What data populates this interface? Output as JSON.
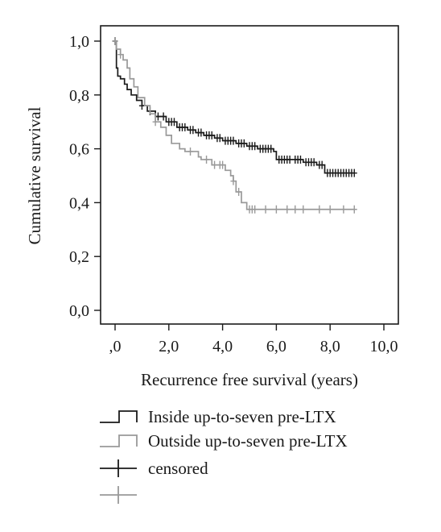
{
  "chart_data": {
    "type": "line",
    "subtype": "kaplan-meier step curve with censor marks",
    "title": "",
    "xlabel": "Recurrence free survival (years)",
    "ylabel": "Cumulative survival",
    "xlim": [
      0,
      10
    ],
    "ylim": [
      0,
      1
    ],
    "x_ticks": [
      0,
      2,
      4,
      6,
      8,
      10
    ],
    "x_tick_labels": [
      ",0",
      "2,0",
      "4,0",
      "6,0",
      "8,0",
      "10,0"
    ],
    "y_ticks": [
      0,
      0.2,
      0.4,
      0.6,
      0.8,
      1.0
    ],
    "y_tick_labels": [
      "0,0",
      "0,2",
      "0,4",
      "0,6",
      "0,8",
      "1,0"
    ],
    "grid": false,
    "legend_position": "bottom",
    "series": [
      {
        "name": "Inside up-to-seven pre-LTX",
        "color": "#1a1a1a",
        "steps": [
          [
            0,
            1.0
          ],
          [
            0.05,
            0.9
          ],
          [
            0.1,
            0.87
          ],
          [
            0.2,
            0.86
          ],
          [
            0.35,
            0.84
          ],
          [
            0.45,
            0.82
          ],
          [
            0.6,
            0.8
          ],
          [
            0.8,
            0.78
          ],
          [
            1.0,
            0.76
          ],
          [
            1.2,
            0.74
          ],
          [
            1.5,
            0.72
          ],
          [
            1.9,
            0.7
          ],
          [
            2.3,
            0.68
          ],
          [
            2.7,
            0.67
          ],
          [
            3.0,
            0.66
          ],
          [
            3.3,
            0.65
          ],
          [
            3.7,
            0.64
          ],
          [
            4.0,
            0.63
          ],
          [
            4.5,
            0.62
          ],
          [
            4.9,
            0.61
          ],
          [
            5.3,
            0.6
          ],
          [
            5.9,
            0.59
          ],
          [
            6.0,
            0.58
          ],
          [
            6.0,
            0.56
          ],
          [
            7.0,
            0.55
          ],
          [
            7.5,
            0.54
          ],
          [
            7.8,
            0.53
          ],
          [
            7.8,
            0.51
          ],
          [
            8.9,
            0.51
          ]
        ],
        "censored_x": [
          0.0,
          1.0,
          1.3,
          1.6,
          1.8,
          2.0,
          2.1,
          2.2,
          2.4,
          2.5,
          2.6,
          2.8,
          2.9,
          3.1,
          3.2,
          3.4,
          3.5,
          3.6,
          3.8,
          3.9,
          4.1,
          4.2,
          4.3,
          4.4,
          4.6,
          4.7,
          4.8,
          5.0,
          5.1,
          5.2,
          5.4,
          5.5,
          5.6,
          5.7,
          5.8,
          6.1,
          6.2,
          6.3,
          6.4,
          6.5,
          6.7,
          6.8,
          6.9,
          7.1,
          7.2,
          7.3,
          7.4,
          7.6,
          7.7,
          7.9,
          8.0,
          8.1,
          8.2,
          8.3,
          8.4,
          8.5,
          8.6,
          8.7,
          8.8,
          8.9
        ]
      },
      {
        "name": "Outside up-to-seven pre-LTX",
        "color": "#999999",
        "steps": [
          [
            0,
            1.0
          ],
          [
            0.05,
            0.97
          ],
          [
            0.2,
            0.95
          ],
          [
            0.3,
            0.93
          ],
          [
            0.45,
            0.9
          ],
          [
            0.55,
            0.86
          ],
          [
            0.7,
            0.83
          ],
          [
            0.85,
            0.79
          ],
          [
            1.1,
            0.76
          ],
          [
            1.3,
            0.73
          ],
          [
            1.5,
            0.7
          ],
          [
            1.7,
            0.68
          ],
          [
            1.9,
            0.65
          ],
          [
            2.1,
            0.62
          ],
          [
            2.4,
            0.6
          ],
          [
            2.6,
            0.59
          ],
          [
            3.1,
            0.57
          ],
          [
            3.2,
            0.56
          ],
          [
            3.6,
            0.54
          ],
          [
            4.1,
            0.52
          ],
          [
            4.3,
            0.5
          ],
          [
            4.4,
            0.48
          ],
          [
            4.5,
            0.44
          ],
          [
            4.7,
            0.4
          ],
          [
            4.9,
            0.38
          ],
          [
            4.9,
            0.375
          ],
          [
            8.9,
            0.375
          ]
        ],
        "censored_x": [
          0.0,
          0.2,
          1.5,
          2.8,
          3.4,
          3.7,
          3.9,
          4.0,
          4.4,
          4.6,
          5.0,
          5.1,
          5.2,
          5.6,
          6.0,
          6.4,
          6.7,
          7.0,
          7.6,
          8.0,
          8.5,
          8.9
        ]
      }
    ],
    "legend": {
      "entries": [
        {
          "label": "Inside up-to-seven pre-LTX",
          "marker": "step",
          "color": "#1a1a1a"
        },
        {
          "label": "Outside up-to-seven pre-LTX",
          "marker": "step",
          "color": "#999999"
        },
        {
          "label": "censored",
          "marker": "plus",
          "color": "#1a1a1a"
        },
        {
          "label": "",
          "marker": "plus",
          "color": "#999999"
        }
      ]
    }
  }
}
